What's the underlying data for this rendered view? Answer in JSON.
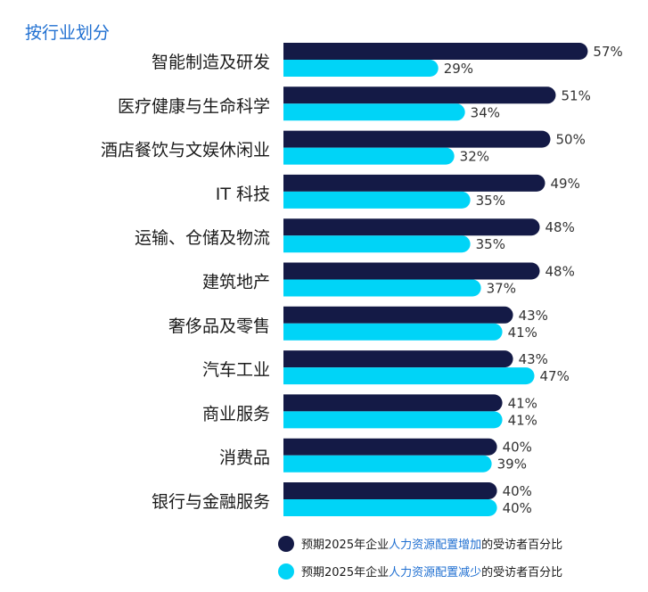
{
  "chart_data": {
    "type": "bar",
    "orientation": "horizontal",
    "title": "按行业划分",
    "value_format": "percent",
    "categories": [
      "智能制造及研发",
      "医疗健康与生命科学",
      "酒店餐饮与文娱休闲业",
      "IT 科技",
      "运输、仓储及物流",
      "建筑地产",
      "奢侈品及零售",
      "汽车工业",
      "商业服务",
      "消费品",
      "银行与金融服务"
    ],
    "series": [
      {
        "legend_prefix": "预期2025年企业",
        "legend_highlight": "人力资源配置增加",
        "legend_suffix": "的受访者百分比",
        "color": "#141a46",
        "values": [
          57,
          51,
          50,
          49,
          48,
          48,
          43,
          43,
          41,
          40,
          40
        ]
      },
      {
        "legend_prefix": "预期2025年企业",
        "legend_highlight": "人力资源配置减少",
        "legend_suffix": "的受访者百分比",
        "color": "#00d4f7",
        "values": [
          29,
          34,
          32,
          35,
          35,
          37,
          41,
          47,
          41,
          39,
          40
        ]
      }
    ],
    "grid": false,
    "legend_position": "bottom-right"
  }
}
